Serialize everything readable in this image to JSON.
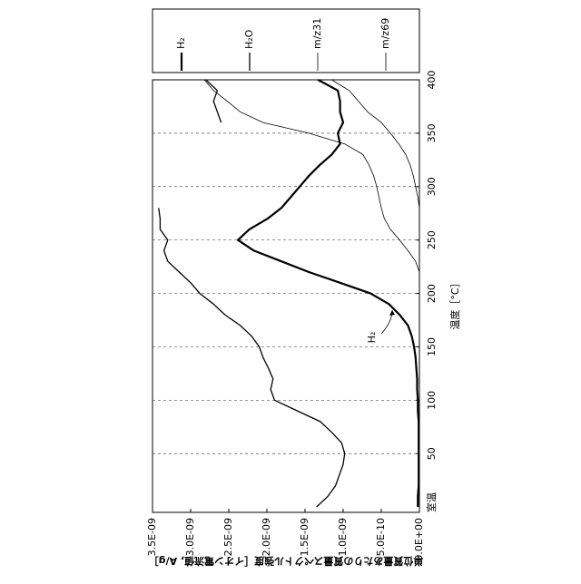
{
  "chart_data": {
    "type": "line",
    "x_label": "温度［°C］",
    "y_label": "単位質量あたりの質量スペクトル強度［イオン電流値, A/g］",
    "annotation": "H₂",
    "x": [
      0,
      10,
      20,
      30,
      40,
      50,
      60,
      70,
      80,
      90,
      100,
      110,
      120,
      130,
      140,
      150,
      160,
      170,
      180,
      190,
      200,
      210,
      220,
      230,
      240,
      250,
      260,
      270,
      280,
      290,
      300,
      310,
      320,
      330,
      340,
      350,
      360,
      370,
      380,
      390,
      400
    ],
    "xlim": [
      -5,
      400
    ],
    "xticks": [
      {
        "value": -5,
        "label": "室温"
      },
      50,
      100,
      150,
      200,
      250,
      300,
      350,
      400
    ],
    "ylim": [
      0,
      3.5e-09
    ],
    "yticks": [
      {
        "value": 0,
        "label": "0.0E+00"
      },
      {
        "value": 5e-10,
        "label": "5.0E-10"
      },
      {
        "value": 1e-09,
        "label": "1.0E-09"
      },
      {
        "value": 1.5e-09,
        "label": "1.5E-09"
      },
      {
        "value": 2e-09,
        "label": "2.0E-09"
      },
      {
        "value": 2.5e-09,
        "label": "2.5E-09"
      },
      {
        "value": 3e-09,
        "label": "3.0E-09"
      },
      {
        "value": 3.5e-09,
        "label": "3.5E-09"
      }
    ],
    "grid_x": true,
    "series": [
      {
        "name": "H₂",
        "color": "#000000",
        "width": 2.2,
        "values": [
          2e-11,
          2e-11,
          1e-11,
          1e-11,
          1e-11,
          1e-11,
          1e-11,
          1e-11,
          1e-11,
          2e-11,
          2e-11,
          3e-11,
          3e-11,
          4e-11,
          5e-11,
          7e-11,
          1e-10,
          1.5e-10,
          2.6e-10,
          4e-10,
          6.4e-10,
          1.04e-09,
          1.45e-09,
          1.81e-09,
          2.17e-09,
          2.38e-09,
          2.23e-09,
          1.99e-09,
          1.81e-09,
          1.69e-09,
          1.57e-09,
          1.45e-09,
          1.31e-09,
          1.15e-09,
          1.04e-09,
          1.07e-09,
          1e-09,
          1.04e-09,
          1.04e-09,
          1.07e-09,
          1.33e-09
        ]
      },
      {
        "name": "H₂O",
        "color": "#000000",
        "width": 1.3,
        "values": [
          1.35e-09,
          1.2e-09,
          1.1e-09,
          1.05e-09,
          1e-09,
          9.8e-10,
          1.02e-09,
          1.15e-09,
          1.3e-09,
          1.6e-09,
          1.9e-09,
          1.95e-09,
          1.92e-09,
          1.98e-09,
          2.05e-09,
          2.1e-09,
          2.2e-09,
          2.35e-09,
          2.55e-09,
          2.7e-09,
          2.88e-09,
          3e-09,
          3.15e-09,
          3.3e-09,
          3.35e-09,
          3.3e-09,
          3.4e-09,
          3.4e-09,
          3.42e-09,
          null,
          null,
          null,
          null,
          null,
          null,
          null,
          2.6e-09,
          2.65e-09,
          2.7e-09,
          2.65e-09,
          2.8e-09
        ]
      },
      {
        "name": "m/z31",
        "color": "#000000",
        "width": 0.8,
        "values": [
          0,
          0,
          0,
          0,
          0,
          0,
          0,
          0,
          0,
          0,
          0,
          0,
          0,
          0,
          0,
          0,
          0,
          0,
          0,
          0,
          0,
          0,
          0,
          5e-11,
          1.5e-10,
          2.6e-10,
          3.8e-10,
          4.6e-10,
          5e-10,
          5.3e-10,
          5.6e-10,
          6e-10,
          6.6e-10,
          7.4e-10,
          9.8e-10,
          1.45e-09,
          2.05e-09,
          2.35e-09,
          2.52e-09,
          2.7e-09,
          2.82e-09
        ]
      },
      {
        "name": "m/z69",
        "color": "#000000",
        "width": 0.8,
        "values": [
          0,
          0,
          0,
          0,
          0,
          0,
          0,
          0,
          0,
          0,
          0,
          0,
          0,
          0,
          0,
          0,
          0,
          0,
          0,
          0,
          0,
          0,
          0,
          0,
          0,
          0,
          0,
          0,
          0,
          2e-11,
          5e-11,
          8e-11,
          1.2e-10,
          1.8e-10,
          2.7e-10,
          3.8e-10,
          5e-10,
          6.8e-10,
          8e-10,
          9.2e-10,
          1.15e-09
        ]
      }
    ]
  }
}
